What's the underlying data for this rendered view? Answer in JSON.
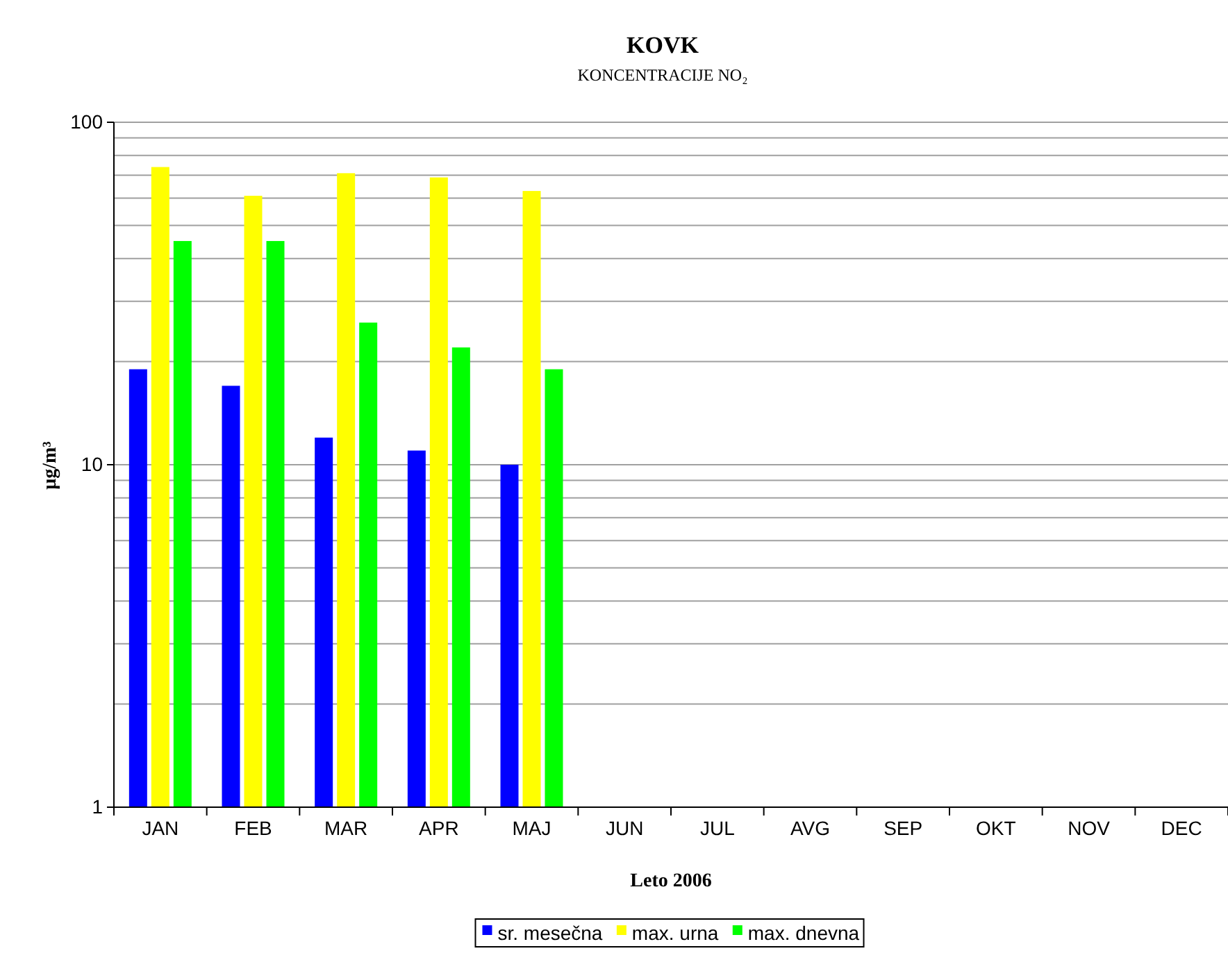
{
  "chart_data": {
    "type": "bar",
    "title": "KOVK",
    "subtitle": "KONCENTRACIJE NO₂",
    "xlabel": "Leto 2006",
    "ylabel": "μg/m³",
    "categories": [
      "JAN",
      "FEB",
      "MAR",
      "APR",
      "MAJ",
      "JUN",
      "JUL",
      "AVG",
      "SEP",
      "OKT",
      "NOV",
      "DEC"
    ],
    "series": [
      {
        "name": "sr. mesečna",
        "color": "#0000ff",
        "values": [
          19,
          17,
          12,
          11,
          10,
          null,
          null,
          null,
          null,
          null,
          null,
          null
        ]
      },
      {
        "name": "max. urna",
        "color": "#ffff00",
        "values": [
          74,
          61,
          71,
          69,
          63,
          null,
          null,
          null,
          null,
          null,
          null,
          null
        ]
      },
      {
        "name": "max. dnevna",
        "color": "#00ff00",
        "values": [
          45,
          45,
          26,
          22,
          19,
          null,
          null,
          null,
          null,
          null,
          null,
          null
        ]
      }
    ],
    "log": "y",
    "ylim": [
      1,
      100
    ],
    "yticks": [
      1,
      {
        "value": 2,
        "label": null
      },
      {
        "value": 3,
        "label": null
      },
      {
        "value": 4,
        "label": null
      },
      {
        "value": 5,
        "label": null
      },
      {
        "value": 6,
        "label": null
      },
      {
        "value": 7,
        "label": null
      },
      {
        "value": 8,
        "label": null
      },
      {
        "value": 9,
        "label": null
      },
      10,
      {
        "value": 20,
        "label": null
      },
      {
        "value": 30,
        "label": null
      },
      {
        "value": 40,
        "label": null
      },
      {
        "value": 50,
        "label": null
      },
      {
        "value": 60,
        "label": null
      },
      {
        "value": 70,
        "label": null
      },
      {
        "value": 80,
        "label": null
      },
      {
        "value": 90,
        "label": null
      },
      100
    ],
    "grid": "y",
    "legend": "bottom"
  }
}
